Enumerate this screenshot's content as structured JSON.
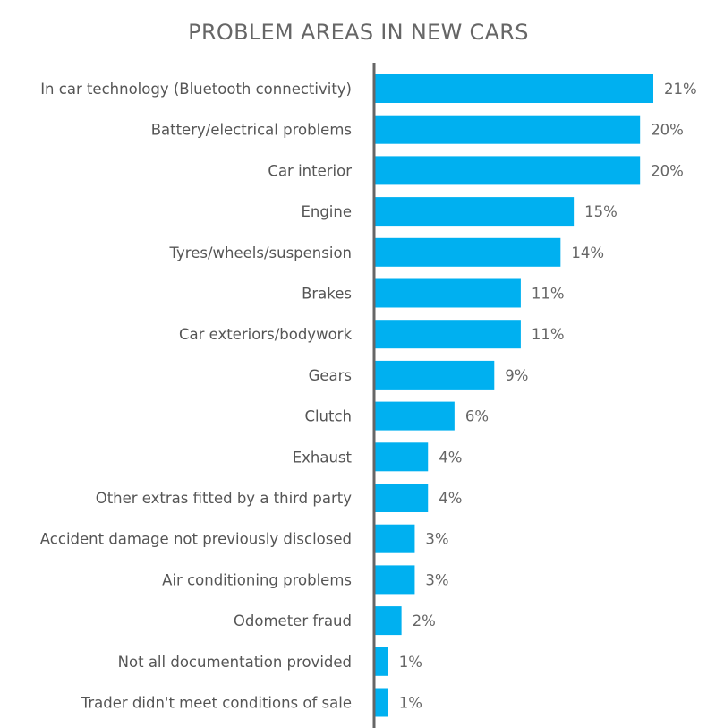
{
  "chart_data": {
    "type": "bar",
    "orientation": "horizontal",
    "title": "PROBLEM AREAS IN NEW CARS",
    "categories": [
      "In car technology (Bluetooth connectivity)",
      "Battery/electrical problems",
      "Car interior",
      "Engine",
      "Tyres/wheels/suspension",
      "Brakes",
      "Car exteriors/bodywork",
      "Gears",
      "Clutch",
      "Exhaust",
      "Other extras fitted by a third party",
      "Accident damage not previously disclosed",
      "Air conditioning problems",
      "Odometer fraud",
      "Not all documentation provided",
      "Trader didn't meet conditions of sale"
    ],
    "values": [
      21,
      20,
      20,
      15,
      14,
      11,
      11,
      9,
      6,
      4,
      4,
      3,
      3,
      2,
      1,
      1
    ],
    "value_labels": [
      "21%",
      "20%",
      "20%",
      "15%",
      "14%",
      "11%",
      "11%",
      "9%",
      "6%",
      "4%",
      "4%",
      "3%",
      "3%",
      "2%",
      "1%",
      "1%"
    ],
    "unit": "%",
    "xlim": [
      0,
      21
    ],
    "grid": false,
    "bar_color": "#00b0f0",
    "axis_color": "#666666"
  }
}
